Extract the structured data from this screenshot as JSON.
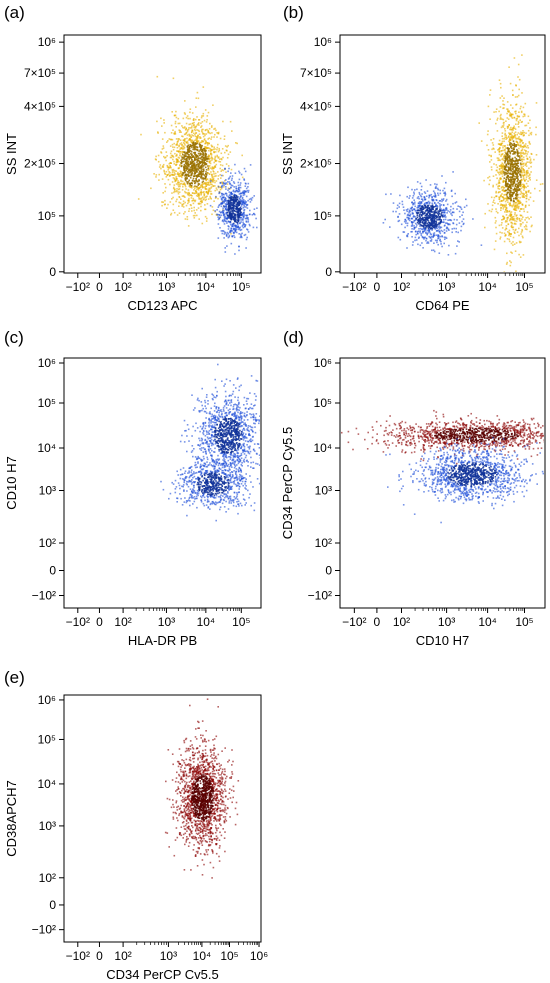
{
  "figure": {
    "panels": [
      "(a)",
      "(b)",
      "(c)",
      "(d)",
      "(e)"
    ]
  },
  "chart_data": [
    {
      "panel": "(a)",
      "type": "scatter",
      "xlabel": "CD123 APC",
      "ylabel": "SS INT",
      "x_scale": "biexponential",
      "y_scale": "biexponential",
      "x_ticks": [
        "−10²",
        "0",
        "10²",
        "10³",
        "10⁴",
        "10⁵"
      ],
      "y_ticks": [
        "10⁶",
        "7×10⁵",
        "4×10⁵",
        "2×10⁵",
        "10⁵",
        "0"
      ],
      "grid": false,
      "populations": [
        {
          "color": "#E8B000",
          "x_center": 5000,
          "y_center": 200000,
          "note": "large yellow cluster"
        },
        {
          "color": "#1E4FD8",
          "x_center": 60000,
          "y_center": 110000,
          "note": "blue cluster"
        }
      ]
    },
    {
      "panel": "(b)",
      "type": "scatter",
      "xlabel": "CD64 PE",
      "ylabel": "SS INT",
      "x_scale": "biexponential",
      "y_scale": "biexponential",
      "x_ticks": [
        "−10²",
        "0",
        "10²",
        "10³",
        "10⁴",
        "10⁵"
      ],
      "y_ticks": [
        "10⁶",
        "7×10⁵",
        "4×10⁵",
        "2×10⁵",
        "10⁵",
        "0"
      ],
      "grid": false,
      "populations": [
        {
          "color": "#1E4FD8",
          "x_center": 400,
          "y_center": 100000,
          "note": "blue cluster"
        },
        {
          "color": "#E8B000",
          "x_center": 45000,
          "y_center": 180000,
          "note": "tall yellow cluster"
        }
      ]
    },
    {
      "panel": "(c)",
      "type": "scatter",
      "xlabel": "HLA-DR PB",
      "ylabel": "CD10 H7",
      "x_scale": "biexponential",
      "y_scale": "biexponential",
      "x_ticks": [
        "−10²",
        "0",
        "10²",
        "10³",
        "10⁴",
        "10⁵"
      ],
      "y_ticks": [
        "10⁶",
        "10⁵",
        "10⁴",
        "10³",
        "10²",
        "0",
        "−10²"
      ],
      "grid": false,
      "populations": [
        {
          "color": "#1E4FD8",
          "x_center": 40000,
          "y_center": 20000,
          "note": "upper blue cluster"
        },
        {
          "color": "#1E4FD8",
          "x_center": 15000,
          "y_center": 1500,
          "note": "lower blue cluster"
        }
      ]
    },
    {
      "panel": "(d)",
      "type": "scatter",
      "xlabel": "CD10 H7",
      "ylabel": "CD34 PerCP Cy5.5",
      "x_scale": "biexponential",
      "y_scale": "biexponential",
      "x_ticks": [
        "−10²",
        "0",
        "10²",
        "10³",
        "10⁴",
        "10⁵"
      ],
      "y_ticks": [
        "10⁶",
        "10⁵",
        "10⁴",
        "10³",
        "10²",
        "0",
        "−10²"
      ],
      "grid": false,
      "populations": [
        {
          "color": "#8B0000",
          "x_center": 5000,
          "y_center": 20000,
          "note": "dark red band"
        },
        {
          "color": "#1E4FD8",
          "x_center": 4000,
          "y_center": 2500,
          "note": "blue cluster"
        }
      ]
    },
    {
      "panel": "(e)",
      "type": "scatter",
      "xlabel": "CD34 PerCP Cv5.5",
      "ylabel": "CD38APCH7",
      "x_scale": "biexponential",
      "y_scale": "biexponential",
      "x_ticks": [
        "−10²",
        "0",
        "10²",
        "10³",
        "10⁴",
        "10⁵",
        "10⁶"
      ],
      "y_ticks": [
        "10⁶",
        "10⁵",
        "10⁴",
        "10³",
        "10²",
        "0",
        "−10²"
      ],
      "grid": false,
      "populations": [
        {
          "color": "#8B0000",
          "x_center": 10000,
          "y_center": 5000,
          "note": "dark red cluster"
        }
      ]
    }
  ]
}
